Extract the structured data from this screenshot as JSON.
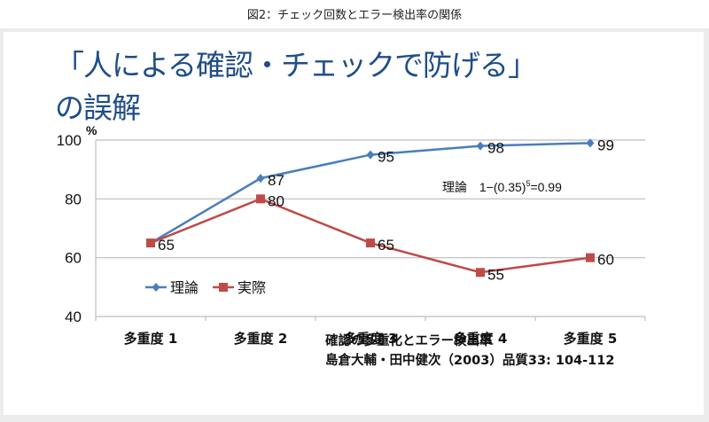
{
  "caption": "図2：チェック回数とエラー検出率の関係",
  "slide": {
    "title_line1": "「人による確認・チェックで防げる」",
    "title_line2": "の誤解",
    "title_color": "#1f4e87"
  },
  "annotation": {
    "label": "理論",
    "formula_prefix": "1−(0.35)",
    "formula_exp": "5",
    "formula_suffix": "=0.99"
  },
  "source": {
    "line1": "確認の多重化とエラー検出率",
    "line2": "島倉大輔・田中健次（2003）品質33: 104-112"
  },
  "chart_data": {
    "type": "line",
    "title": "",
    "xlabel": "",
    "ylabel": "%",
    "categories": [
      "多重度 1",
      "多重度 2",
      "多重度 3",
      "多重度 4",
      "多重度 5"
    ],
    "ylim": [
      40,
      100
    ],
    "yticks": [
      40,
      60,
      80,
      100
    ],
    "grid": true,
    "legend_position": "inside-left",
    "series": [
      {
        "name": "理論",
        "values": [
          65,
          87,
          95,
          98,
          99
        ],
        "color": "#4a7ebb",
        "marker": "diamond",
        "labels": [
          null,
          "87",
          "95",
          "98",
          "99"
        ]
      },
      {
        "name": "実際",
        "values": [
          65,
          80,
          65,
          55,
          60
        ],
        "color": "#be4b48",
        "marker": "square",
        "labels": [
          "65",
          "80",
          "65",
          "55",
          "60"
        ]
      }
    ]
  }
}
